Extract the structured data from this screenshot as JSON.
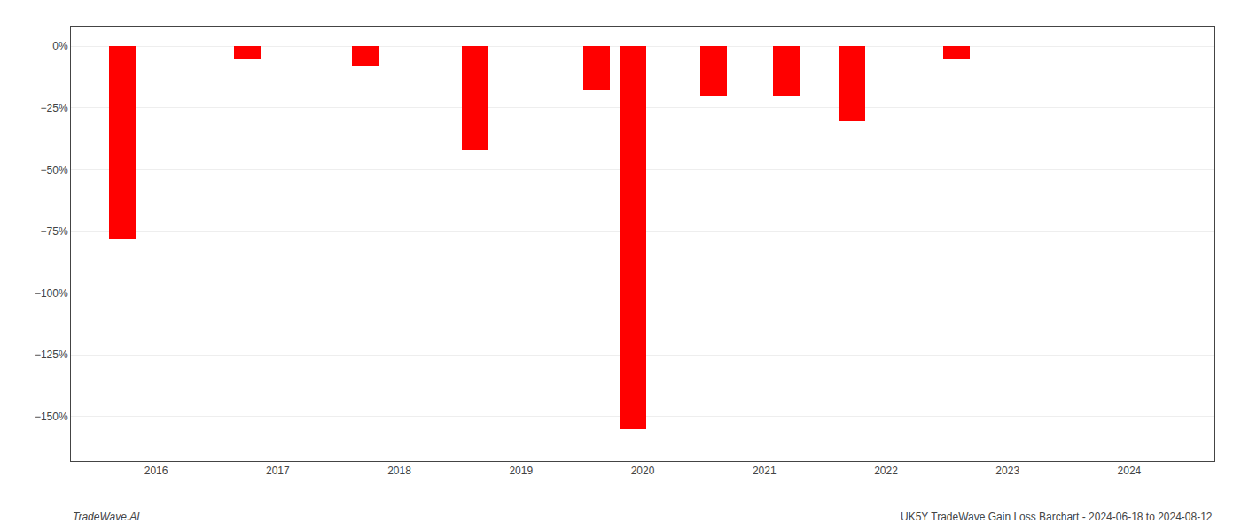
{
  "chart_data": {
    "type": "bar",
    "x": [
      2015.72,
      2016.75,
      2017.72,
      2018.62,
      2019.62,
      2019.92,
      2020.58,
      2021.18,
      2021.72,
      2022.58
    ],
    "values": [
      -78,
      -5,
      -8,
      -42,
      -18,
      -155,
      -20,
      -20,
      -30,
      -5
    ],
    "color": "#ff0000",
    "xlim": [
      2015.3,
      2024.7
    ],
    "xticks": [
      2016,
      2017,
      2018,
      2019,
      2020,
      2021,
      2022,
      2023,
      2024
    ],
    "ylim": [
      -168,
      8
    ],
    "yticks": [
      {
        "value": 0,
        "label": "0%"
      },
      {
        "value": -25,
        "label": "−25%"
      },
      {
        "value": -50,
        "label": "−50%"
      },
      {
        "value": -75,
        "label": "−75%"
      },
      {
        "value": -100,
        "label": "−100%"
      },
      {
        "value": -125,
        "label": "−125%"
      },
      {
        "value": -150,
        "label": "−150%"
      }
    ],
    "grid": true,
    "annotations": [
      "TradeWave.AI",
      "UK5Y TradeWave Gain Loss Barchart - 2024-06-18 to 2024-08-12"
    ]
  }
}
